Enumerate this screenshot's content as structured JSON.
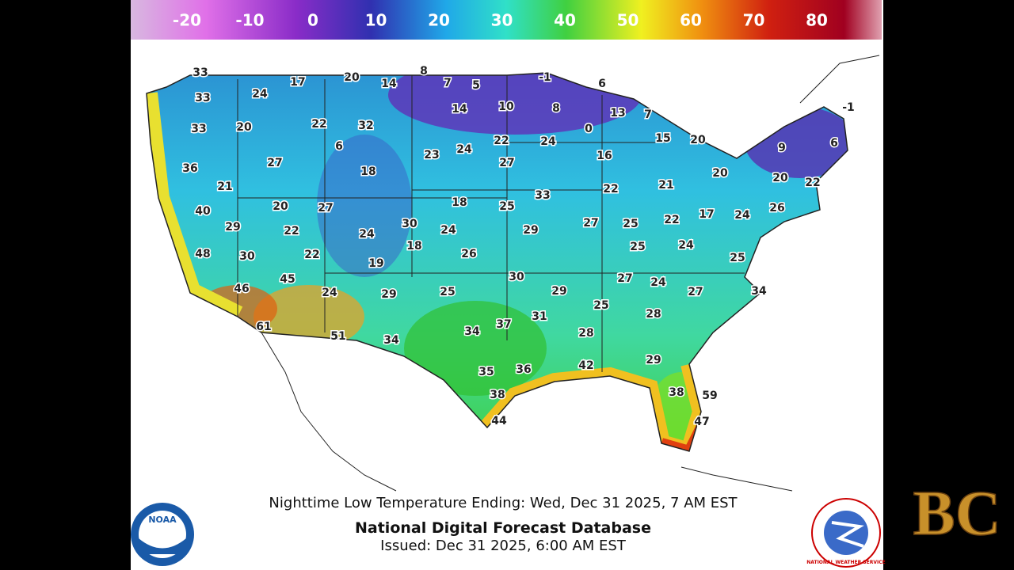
{
  "colorbar": {
    "labels": [
      -20,
      -10,
      0,
      10,
      20,
      30,
      40,
      50,
      60,
      70,
      80
    ]
  },
  "map": {
    "temperatures": [
      33,
      33,
      24,
      17,
      20,
      14,
      8,
      7,
      5,
      -1,
      6,
      33,
      20,
      22,
      32,
      14,
      10,
      8,
      13,
      7,
      -1,
      0,
      15,
      20,
      9,
      6,
      36,
      27,
      6,
      18,
      23,
      24,
      22,
      24,
      16,
      27,
      21,
      20,
      20,
      22,
      40,
      20,
      27,
      18,
      25,
      33,
      22,
      21,
      29,
      22,
      24,
      30,
      24,
      29,
      27,
      25,
      22,
      17,
      24,
      26,
      48,
      30,
      22,
      18,
      26,
      25,
      24,
      25,
      19,
      45,
      30,
      27,
      24,
      34,
      46,
      24,
      29,
      25,
      29,
      27,
      25,
      28,
      31,
      37,
      34,
      28,
      61,
      51,
      34,
      29,
      42,
      35,
      36,
      38,
      38,
      59,
      47,
      44
    ]
  },
  "caption": {
    "line1": "Nighttime Low Temperature Ending: Wed, Dec 31 2025, 7 AM EST",
    "title": "National Digital Forecast Database",
    "issued": "Issued: Dec 31 2025, 6:00 AM EST"
  },
  "logos": {
    "noaa": "NOAA",
    "nws": "NATIONAL WEATHER SERVICE",
    "channel": "BC"
  }
}
